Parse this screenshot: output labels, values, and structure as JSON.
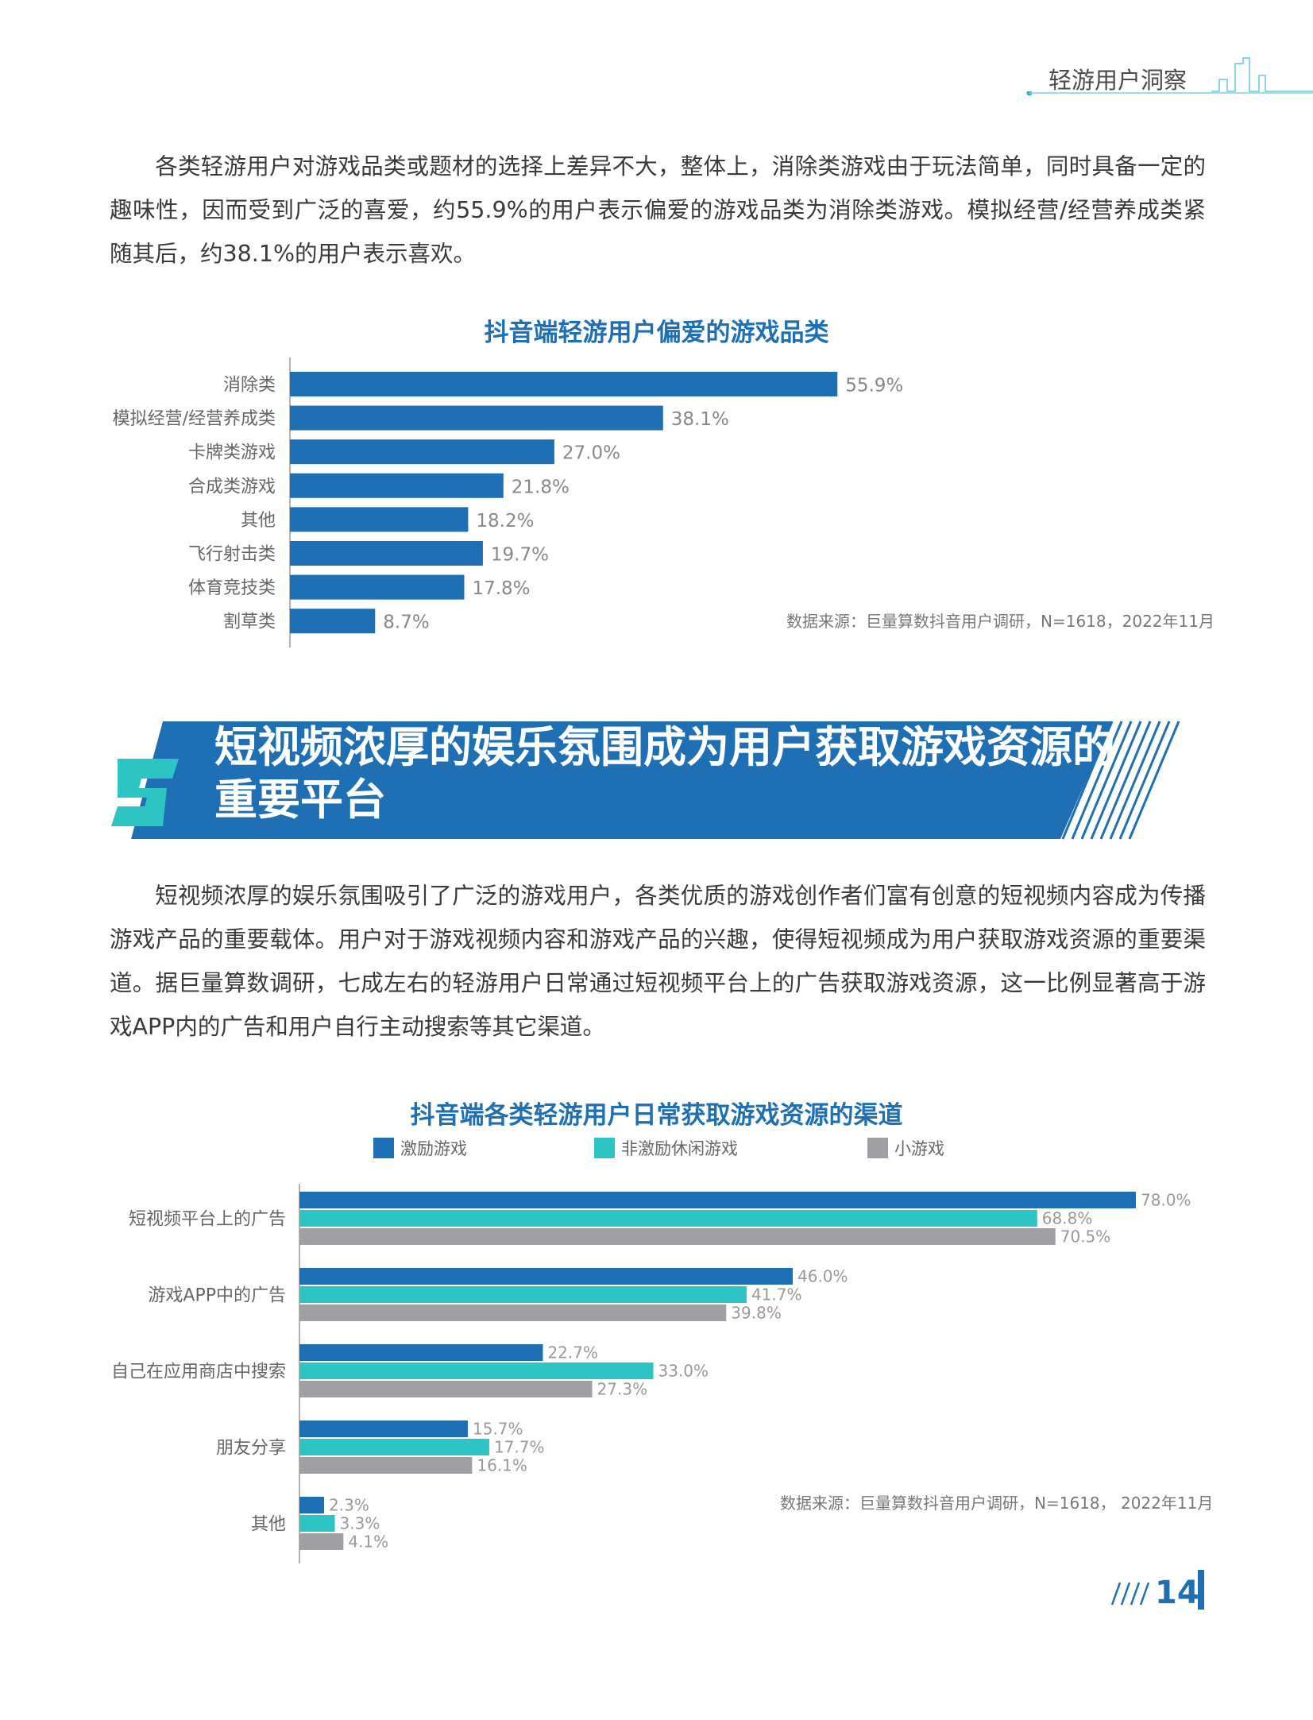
{
  "header": {
    "title": "轻游用户洞察"
  },
  "para1": "各类轻游用户对游戏品类或题材的选择上差异不大，整体上，消除类游戏由于玩法简单，同时具备一定的趣味性，因而受到广泛的喜爱，约55.9%的用户表示偏爱的游戏品类为消除类游戏。模拟经营/经营养成类紧随其后，约38.1%的用户表示喜欢。",
  "section": {
    "number": "5",
    "title": "短视频浓厚的娱乐氛围成为用户获取游戏资源的重要平台"
  },
  "para2": "短视频浓厚的娱乐氛围吸引了广泛的游戏用户，各类优质的游戏创作者们富有创意的短视频内容成为传播游戏产品的重要载体。用户对于游戏视频内容和游戏产品的兴趣，使得短视频成为用户获取游戏资源的重要渠道。据巨量算数调研，七成左右的轻游用户日常通过短视频平台上的广告获取游戏资源，这一比例显著高于游戏APP内的广告和用户自行主动搜索等其它渠道。",
  "page_number": "14",
  "chart_data": [
    {
      "type": "bar",
      "orientation": "horizontal",
      "title": "抖音端轻游用户偏爱的游戏品类",
      "categories": [
        "消除类",
        "模拟经营/经营养成类",
        "卡牌类游戏",
        "合成类游戏",
        "其他",
        "飞行射击类",
        "体育竞技类",
        "割草类"
      ],
      "values": [
        55.9,
        38.1,
        27.0,
        21.8,
        18.2,
        19.7,
        17.8,
        8.7
      ],
      "value_labels": [
        "55.9%",
        "38.1%",
        "27.0%",
        "21.8%",
        "18.2%",
        "19.7%",
        "17.8%",
        "8.7%"
      ],
      "color": "#1f6fb4",
      "source": "数据来源：巨量算数抖音用户调研，N=1618，2022年11月"
    },
    {
      "type": "bar",
      "orientation": "horizontal",
      "title": "抖音端各类轻游用户日常获取游戏资源的渠道",
      "categories": [
        "短视频平台上的广告",
        "游戏APP中的广告",
        "自己在应用商店中搜索",
        "朋友分享",
        "其他"
      ],
      "series": [
        {
          "name": "激励游戏",
          "color": "#1f6fb4",
          "values": [
            78.0,
            46.0,
            22.7,
            15.7,
            2.3
          ],
          "labels": [
            "78.0%",
            "46.0%",
            "22.7%",
            "15.7%",
            "2.3%"
          ]
        },
        {
          "name": "非激励休闲游戏",
          "color": "#2ec4c4",
          "values": [
            68.8,
            41.7,
            33.0,
            17.7,
            3.3
          ],
          "labels": [
            "68.8%",
            "41.7%",
            "33.0%",
            "17.7%",
            "3.3%"
          ]
        },
        {
          "name": "小游戏",
          "color": "#a0a0a4",
          "values": [
            70.5,
            39.8,
            27.3,
            16.1,
            4.1
          ],
          "labels": [
            "70.5%",
            "39.8%",
            "27.3%",
            "16.1%",
            "4.1%"
          ]
        }
      ],
      "legend": "top",
      "source": "数据来源：巨量算数抖音用户调研，N=1618， 2022年11月"
    }
  ]
}
